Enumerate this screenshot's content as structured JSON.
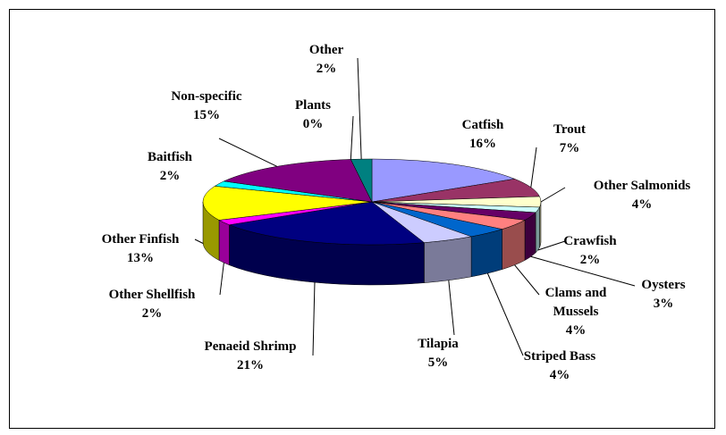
{
  "chart_data": {
    "type": "pie",
    "categories": [
      "Catfish",
      "Trout",
      "Other Salmonids",
      "Crawfish",
      "Oysters",
      "Clams and Mussels",
      "Striped Bass",
      "Tilapia",
      "Penaeid Shrimp",
      "Other Shellfish",
      "Other Finfish",
      "Baitfish",
      "Non-specific",
      "Plants",
      "Other"
    ],
    "values": [
      16,
      7,
      4,
      2,
      3,
      4,
      4,
      5,
      21,
      2,
      13,
      2,
      15,
      0,
      2
    ],
    "value_labels": [
      "16%",
      "7%",
      "4%",
      "2%",
      "3%",
      "4%",
      "4%",
      "5%",
      "21%",
      "2%",
      "13%",
      "2%",
      "15%",
      "0%",
      "2%"
    ],
    "colors": [
      "#9999ff",
      "#993366",
      "#ffffcc",
      "#ccffff",
      "#660066",
      "#ff8080",
      "#0066cc",
      "#ccccff",
      "#000080",
      "#ff00ff",
      "#ffff00",
      "#00ffff",
      "#800080",
      "#800000",
      "#008080"
    ]
  }
}
